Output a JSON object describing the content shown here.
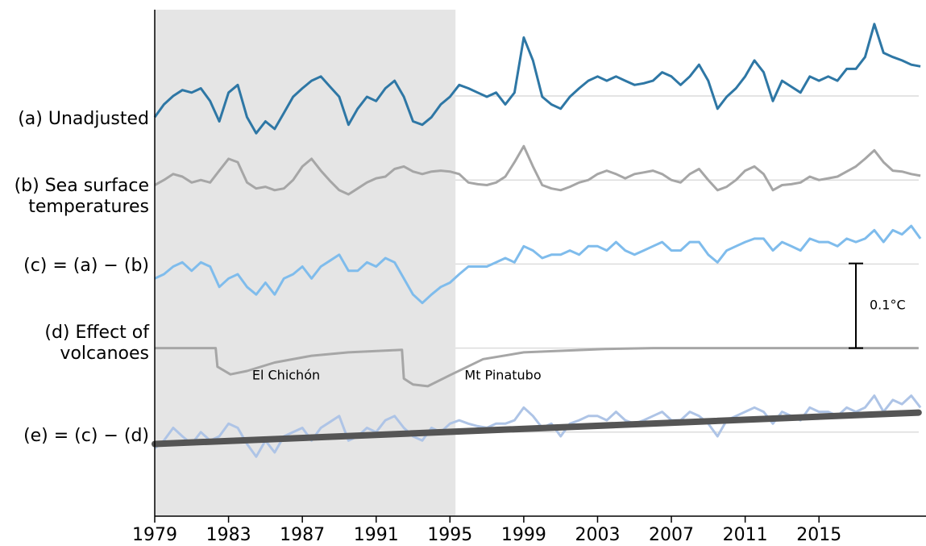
{
  "chart_data": {
    "type": "line",
    "x": [
      1979,
      1979.5,
      1980,
      1980.5,
      1981,
      1981.5,
      1982,
      1982.5,
      1983,
      1983.5,
      1984,
      1984.5,
      1985,
      1985.5,
      1986,
      1986.5,
      1987,
      1987.5,
      1988,
      1988.5,
      1989,
      1989.5,
      1990,
      1990.5,
      1991,
      1991.5,
      1992,
      1992.5,
      1993,
      1993.5,
      1994,
      1994.5,
      1995,
      1995.5,
      1996,
      1996.5,
      1997,
      1997.5,
      1998,
      1998.5,
      1999,
      1999.5,
      2000,
      2000.5,
      2001,
      2001.5,
      2002,
      2002.5,
      2003,
      2003.5,
      2004,
      2004.5,
      2005,
      2005.5,
      2006,
      2006.5,
      2007,
      2007.5,
      2008,
      2008.5,
      2009,
      2009.5,
      2010,
      2010.5,
      2011,
      2011.5,
      2012,
      2012.5,
      2013,
      2013.5,
      2014,
      2014.5,
      2015,
      2015.5,
      2016,
      2016.5,
      2017,
      2017.5,
      2018,
      2018.5,
      2019,
      2019.5,
      2020,
      2020.5
    ],
    "xlim": [
      1979,
      2020.8
    ],
    "xticks": [
      1979,
      1983,
      1987,
      1991,
      1995,
      1999,
      2003,
      2007,
      2011,
      2015
    ],
    "series": [
      {
        "name": "(a) Unadjusted",
        "color": "#2e77a5",
        "values": [
          -0.025,
          -0.01,
          0.0,
          0.007,
          0.004,
          0.009,
          -0.006,
          -0.03,
          0.004,
          0.013,
          -0.025,
          -0.044,
          -0.03,
          -0.039,
          -0.02,
          -0.001,
          0.009,
          0.018,
          0.023,
          0.011,
          -0.001,
          -0.034,
          -0.015,
          -0.001,
          -0.006,
          0.009,
          0.018,
          -0.001,
          -0.03,
          -0.034,
          -0.025,
          -0.01,
          -0.001,
          0.013,
          0.009,
          0.004,
          -0.001,
          0.004,
          -0.01,
          0.004,
          0.069,
          0.042,
          -0.001,
          -0.01,
          -0.015,
          -0.001,
          0.009,
          0.018,
          0.023,
          0.018,
          0.023,
          0.018,
          0.013,
          0.015,
          0.018,
          0.028,
          0.023,
          0.013,
          0.023,
          0.037,
          0.018,
          -0.015,
          -0.001,
          0.009,
          0.023,
          0.042,
          0.028,
          -0.006,
          0.018,
          0.011,
          0.004,
          0.023,
          0.018,
          0.023,
          0.018,
          0.032,
          0.032,
          0.046,
          0.085,
          0.051,
          0.046,
          0.042,
          0.037,
          0.035
        ]
      },
      {
        "name": "(b) Sea surface\ntemperatures",
        "color": "#a6a6a6",
        "values": [
          -0.006,
          0,
          0.007,
          0.004,
          -0.003,
          0,
          -0.003,
          0.011,
          0.025,
          0.021,
          -0.003,
          -0.01,
          -0.008,
          -0.012,
          -0.01,
          0,
          0.016,
          0.025,
          0.011,
          -0.001,
          -0.012,
          -0.017,
          -0.01,
          -0.003,
          0.002,
          0.004,
          0.013,
          0.016,
          0.01,
          0.007,
          0.01,
          0.011,
          0.01,
          0.007,
          -0.003,
          -0.005,
          -0.006,
          -0.003,
          0.004,
          0.021,
          0.04,
          0.016,
          -0.006,
          -0.01,
          -0.012,
          -0.008,
          -0.003,
          0,
          0.007,
          0.011,
          0.007,
          0.002,
          0.007,
          0.009,
          0.011,
          0.007,
          0,
          -0.003,
          0.007,
          0.013,
          0,
          -0.012,
          -0.008,
          0,
          0.011,
          0.016,
          0.007,
          -0.012,
          -0.006,
          -0.005,
          -0.003,
          0.004,
          0,
          0.002,
          0.004,
          0.01,
          0.016,
          0.025,
          0.035,
          0.021,
          0.011,
          0.01,
          0.007,
          0.005
        ]
      },
      {
        "name": "(c) = (a) − (b)",
        "color": "#7fbcec",
        "values": [
          -0.017,
          -0.012,
          -0.003,
          0.002,
          -0.008,
          0.002,
          -0.003,
          -0.027,
          -0.017,
          -0.012,
          -0.027,
          -0.036,
          -0.022,
          -0.036,
          -0.017,
          -0.012,
          -0.003,
          -0.017,
          -0.003,
          0.004,
          0.011,
          -0.008,
          -0.008,
          0.002,
          -0.003,
          0.007,
          0.002,
          -0.017,
          -0.036,
          -0.046,
          -0.036,
          -0.027,
          -0.022,
          -0.012,
          -0.003,
          -0.003,
          -0.003,
          0.002,
          0.007,
          0.002,
          0.021,
          0.016,
          0.007,
          0.011,
          0.011,
          0.016,
          0.011,
          0.021,
          0.021,
          0.016,
          0.026,
          0.016,
          0.011,
          0.016,
          0.021,
          0.026,
          0.016,
          0.016,
          0.026,
          0.026,
          0.011,
          0.002,
          0.016,
          0.021,
          0.026,
          0.03,
          0.03,
          0.016,
          0.026,
          0.021,
          0.016,
          0.03,
          0.026,
          0.026,
          0.021,
          0.03,
          0.026,
          0.03,
          0.04,
          0.026,
          0.04,
          0.035,
          0.045,
          0.03
        ]
      },
      {
        "name": "(d) Effect of\nvolcanoes",
        "color": "#a6a6a6",
        "x": [
          1979,
          1982.3,
          1982.4,
          1983.1,
          1984.0,
          1985.5,
          1987.5,
          1989.5,
          1992.4,
          1992.5,
          1993.0,
          1993.8,
          1995,
          1996.8,
          1999,
          2003.4,
          2006,
          2020.4
        ],
        "values": [
          0,
          0,
          -0.022,
          -0.031,
          -0.027,
          -0.017,
          -0.009,
          -0.005,
          -0.002,
          -0.036,
          -0.043,
          -0.045,
          -0.032,
          -0.013,
          -0.005,
          -0.001,
          0,
          0
        ]
      },
      {
        "name": "(e) = (c) − (d)",
        "color": "#aec4e6",
        "values": [
          -0.019,
          -0.01,
          0.005,
          -0.005,
          -0.014,
          0,
          -0.01,
          -0.005,
          0.01,
          0.005,
          -0.014,
          -0.029,
          -0.01,
          -0.024,
          -0.005,
          0,
          0.005,
          -0.01,
          0.005,
          0.012,
          0.019,
          -0.01,
          -0.005,
          0.005,
          0,
          0.014,
          0.019,
          0.005,
          -0.005,
          -0.01,
          0.005,
          0,
          0.01,
          0.014,
          0.01,
          0.007,
          0.005,
          0.01,
          0.01,
          0.014,
          0.029,
          0.019,
          0.005,
          0.01,
          -0.005,
          0.01,
          0.014,
          0.019,
          0.019,
          0.014,
          0.024,
          0.014,
          0.01,
          0.014,
          0.019,
          0.024,
          0.014,
          0.014,
          0.024,
          0.019,
          0.01,
          -0.005,
          0.014,
          0.019,
          0.024,
          0.029,
          0.024,
          0.01,
          0.024,
          0.019,
          0.014,
          0.029,
          0.024,
          0.024,
          0.019,
          0.029,
          0.024,
          0.029,
          0.043,
          0.024,
          0.038,
          0.033,
          0.043,
          0.029
        ]
      }
    ],
    "trend": {
      "color": "#555555",
      "x": [
        1979,
        2020.4
      ],
      "values": [
        -0.014,
        0.023
      ]
    },
    "shade": {
      "x": [
        1979,
        1995.3
      ],
      "color": "#e5e5e5"
    },
    "scale_bar": {
      "value": 0.1,
      "label": "0.1°C"
    },
    "annotations": [
      "El Chichón",
      "Mt Pinatubo"
    ]
  }
}
